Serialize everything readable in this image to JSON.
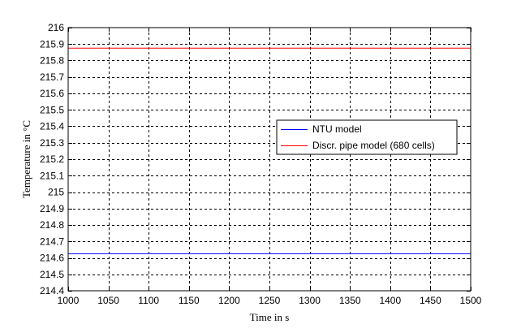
{
  "chart_data": {
    "type": "line",
    "xlabel": "Time in s",
    "ylabel": "Temperature in °C",
    "xlim": [
      1000,
      1500
    ],
    "ylim": [
      214.4,
      216
    ],
    "xticks": [
      1000,
      1050,
      1100,
      1150,
      1200,
      1250,
      1300,
      1350,
      1400,
      1450,
      1500
    ],
    "yticks": [
      214.4,
      214.5,
      214.6,
      214.7,
      214.8,
      214.9,
      215,
      215.1,
      215.2,
      215.3,
      215.4,
      215.5,
      215.6,
      215.7,
      215.8,
      215.9,
      216
    ],
    "xtick_labels": [
      "1000",
      "1050",
      "1100",
      "1150",
      "1200",
      "1250",
      "1300",
      "1350",
      "1400",
      "1450",
      "1500"
    ],
    "ytick_labels": [
      "214.4",
      "214.5",
      "214.6",
      "214.7",
      "214.8",
      "214.9",
      "215",
      "215.1",
      "215.2",
      "215.3",
      "215.4",
      "215.5",
      "215.6",
      "215.7",
      "215.8",
      "215.9",
      "216"
    ],
    "grid": true,
    "grid_style": "dashed",
    "legend_position": "right",
    "series": [
      {
        "name": "NTU model",
        "color": "#0000ff",
        "x": [
          1000,
          1500
        ],
        "y": [
          214.625,
          214.625
        ]
      },
      {
        "name": "Discr. pipe model (680 cells)",
        "color": "#ff0000",
        "x": [
          1000,
          1500
        ],
        "y": [
          215.875,
          215.875
        ]
      }
    ]
  }
}
